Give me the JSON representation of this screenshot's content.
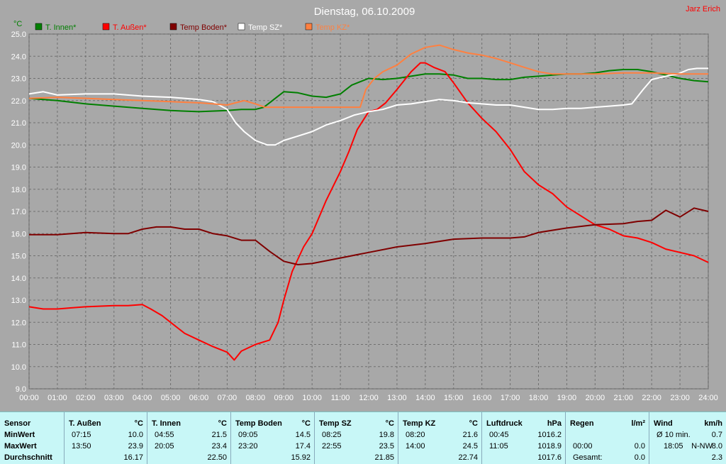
{
  "title": "Dienstag, 06.10.2009",
  "author": "Jarz Erich",
  "colors": {
    "innen": "#007f00",
    "aussen": "#ff0000",
    "boden": "#7f0000",
    "sz": "#ffffff",
    "kz": "#ff8040",
    "plot_bg": "#a8a8a8",
    "grid": "#707070",
    "stats_bg": "#c8f7f7"
  },
  "chart_data": {
    "type": "line",
    "title": "Dienstag, 06.10.2009",
    "ylabel": "°C",
    "xlabel": "",
    "ylim": [
      9.0,
      25.0
    ],
    "xlim": [
      0,
      24
    ],
    "y_ticks": [
      "9.0",
      "10.0",
      "11.0",
      "12.0",
      "13.0",
      "14.0",
      "15.0",
      "16.0",
      "17.0",
      "18.0",
      "19.0",
      "20.0",
      "21.0",
      "22.0",
      "23.0",
      "24.0",
      "25.0"
    ],
    "x_ticks": [
      "00:00",
      "01:00",
      "02:00",
      "03:00",
      "04:00",
      "05:00",
      "06:00",
      "07:00",
      "08:00",
      "09:00",
      "10:00",
      "11:00",
      "12:00",
      "13:00",
      "14:00",
      "15:00",
      "16:00",
      "17:00",
      "18:00",
      "19:00",
      "20:00",
      "21:00",
      "22:00",
      "23:00",
      "24:00"
    ],
    "grid": true,
    "legend_position": "top",
    "series": [
      {
        "name": "T. Innen*",
        "color": "#007f00",
        "x": [
          0,
          1,
          2,
          3,
          4,
          5,
          6,
          7,
          7.5,
          8,
          8.3,
          8.7,
          9,
          9.5,
          10,
          10.5,
          11,
          11.4,
          11.7,
          12,
          12.5,
          13,
          13.5,
          14,
          14.5,
          15,
          15.5,
          16,
          16.5,
          17,
          17.5,
          18,
          18.5,
          19,
          19.5,
          20,
          20.5,
          21,
          21.5,
          22,
          22.5,
          23,
          23.5,
          24
        ],
        "y": [
          22.1,
          22.0,
          21.85,
          21.75,
          21.65,
          21.55,
          21.5,
          21.55,
          21.6,
          21.6,
          21.7,
          22.1,
          22.4,
          22.35,
          22.2,
          22.15,
          22.3,
          22.7,
          22.85,
          23.0,
          22.95,
          23.0,
          23.1,
          23.2,
          23.2,
          23.15,
          23.0,
          23.0,
          22.95,
          22.95,
          23.05,
          23.1,
          23.15,
          23.2,
          23.2,
          23.25,
          23.35,
          23.4,
          23.4,
          23.3,
          23.15,
          23.0,
          22.9,
          22.85
        ]
      },
      {
        "name": "T. Außen*",
        "color": "#ff0000",
        "x": [
          0,
          0.5,
          1,
          1.5,
          2,
          3,
          3.5,
          4,
          4.3,
          4.7,
          5,
          5.5,
          6,
          6.5,
          7,
          7.25,
          7.5,
          8,
          8.5,
          8.8,
          9,
          9.3,
          9.7,
          10,
          10.5,
          11,
          11.3,
          11.6,
          12,
          12.3,
          12.6,
          13,
          13.5,
          13.83,
          14,
          14.3,
          14.7,
          15,
          15.5,
          16,
          16.5,
          17,
          17.5,
          18,
          18.5,
          19,
          19.5,
          20,
          20.5,
          21,
          21.5,
          22,
          22.5,
          23,
          23.5,
          24
        ],
        "y": [
          12.7,
          12.6,
          12.6,
          12.65,
          12.7,
          12.75,
          12.75,
          12.8,
          12.6,
          12.3,
          12.0,
          11.5,
          11.2,
          10.9,
          10.65,
          10.3,
          10.7,
          11.0,
          11.2,
          12.0,
          13.0,
          14.3,
          15.4,
          16.0,
          17.5,
          18.8,
          19.7,
          20.7,
          21.5,
          21.6,
          21.9,
          22.5,
          23.3,
          23.7,
          23.7,
          23.5,
          23.3,
          22.8,
          21.9,
          21.2,
          20.6,
          19.8,
          18.8,
          18.2,
          17.8,
          17.2,
          16.8,
          16.4,
          16.2,
          15.9,
          15.8,
          15.6,
          15.3,
          15.15,
          15.0,
          14.7
        ]
      },
      {
        "name": "Temp Boden*",
        "color": "#7f0000",
        "x": [
          0,
          1,
          2,
          3,
          3.5,
          4,
          4.5,
          5,
          5.5,
          6,
          6.5,
          7,
          7.5,
          8,
          8.5,
          9,
          9.5,
          10,
          11,
          12,
          13,
          14,
          15,
          16,
          17,
          17.5,
          18,
          19,
          20,
          21,
          21.5,
          22,
          22.5,
          23,
          23.5,
          24
        ],
        "y": [
          15.95,
          15.95,
          16.05,
          16.0,
          16.0,
          16.2,
          16.3,
          16.3,
          16.2,
          16.2,
          16.0,
          15.9,
          15.7,
          15.7,
          15.2,
          14.75,
          14.6,
          14.65,
          14.9,
          15.15,
          15.4,
          15.55,
          15.75,
          15.8,
          15.8,
          15.85,
          16.05,
          16.25,
          16.4,
          16.45,
          16.55,
          16.6,
          17.05,
          16.75,
          17.15,
          17.0
        ]
      },
      {
        "name": "Temp SZ*",
        "color": "#ffffff",
        "x": [
          0,
          0.5,
          1,
          2,
          3,
          4,
          5,
          6,
          6.5,
          7,
          7.3,
          7.6,
          8,
          8.42,
          8.7,
          9,
          9.5,
          10,
          10.5,
          11,
          11.5,
          12,
          12.5,
          13,
          13.5,
          14,
          14.5,
          15,
          15.5,
          16,
          16.5,
          17,
          17.5,
          18,
          18.5,
          19,
          19.5,
          20,
          20.5,
          21,
          21.3,
          21.7,
          22,
          22.5,
          22.92,
          23.3,
          23.6,
          24
        ],
        "y": [
          22.3,
          22.4,
          22.25,
          22.3,
          22.3,
          22.2,
          22.15,
          22.05,
          21.95,
          21.6,
          21.0,
          20.6,
          20.2,
          20.0,
          20.0,
          20.2,
          20.4,
          20.6,
          20.9,
          21.1,
          21.35,
          21.5,
          21.6,
          21.8,
          21.85,
          21.95,
          22.05,
          22.0,
          21.9,
          21.85,
          21.8,
          21.8,
          21.7,
          21.6,
          21.6,
          21.65,
          21.65,
          21.7,
          21.75,
          21.8,
          21.85,
          22.5,
          22.95,
          23.1,
          23.2,
          23.4,
          23.45,
          23.45
        ]
      },
      {
        "name": "Temp KZ*",
        "color": "#ff8040",
        "x": [
          0,
          1,
          2,
          3,
          4,
          5,
          6,
          6.5,
          7,
          7.3,
          7.6,
          8,
          8.33,
          8.7,
          9,
          10,
          11,
          11.7,
          11.9,
          12.2,
          12.5,
          13,
          13.5,
          14,
          14.5,
          15,
          15.5,
          16,
          16.5,
          17,
          17.5,
          18,
          18.5,
          19,
          20,
          21,
          22,
          23,
          24
        ],
        "y": [
          22.1,
          22.15,
          22.1,
          22.05,
          22.0,
          21.95,
          21.9,
          21.85,
          21.8,
          21.9,
          22.0,
          21.85,
          21.7,
          21.7,
          21.7,
          21.7,
          21.7,
          21.7,
          22.5,
          23.0,
          23.3,
          23.6,
          24.1,
          24.4,
          24.5,
          24.3,
          24.15,
          24.05,
          23.9,
          23.7,
          23.5,
          23.3,
          23.2,
          23.2,
          23.2,
          23.25,
          23.25,
          23.2,
          23.2
        ]
      }
    ]
  },
  "stats": {
    "row_labels": [
      "Sensor",
      "MinWert",
      "MaxWert",
      "Durchschnitt"
    ],
    "columns": [
      {
        "name": "T. Außen",
        "unit": "°C",
        "min_time": "07:15",
        "min": "10.0",
        "max_time": "13:50",
        "max": "23.9",
        "avg": "16.17"
      },
      {
        "name": "T. Innen",
        "unit": "°C",
        "min_time": "04:55",
        "min": "21.5",
        "max_time": "20:05",
        "max": "23.4",
        "avg": "22.50"
      },
      {
        "name": "Temp Boden",
        "unit": "°C",
        "min_time": "09:05",
        "min": "14.5",
        "max_time": "23:20",
        "max": "17.4",
        "avg": "15.92"
      },
      {
        "name": "Temp SZ",
        "unit": "°C",
        "min_time": "08:25",
        "min": "19.8",
        "max_time": "22:55",
        "max": "23.5",
        "avg": "21.85"
      },
      {
        "name": "Temp KZ",
        "unit": "°C",
        "min_time": "08:20",
        "min": "21.6",
        "max_time": "14:00",
        "max": "24.5",
        "avg": "22.74"
      },
      {
        "name": "Luftdruck",
        "unit": "hPa",
        "min_time": "00:45",
        "min": "1016.2",
        "max_time": "11:05",
        "max": "1018.9",
        "avg": "1017.6"
      },
      {
        "name": "Regen",
        "unit": "l/m²",
        "min_time": "",
        "min": "",
        "max_time": "00:00",
        "max": "0.0",
        "avg_label": "Gesamt:",
        "avg": "0.0"
      },
      {
        "name": "Wind",
        "unit": "km/h",
        "min_time": "Ø 10 min.",
        "min": "0.7",
        "max_time": "18:05",
        "max_dir": "N-NW",
        "max": "8.0",
        "avg": "2.3"
      }
    ]
  }
}
